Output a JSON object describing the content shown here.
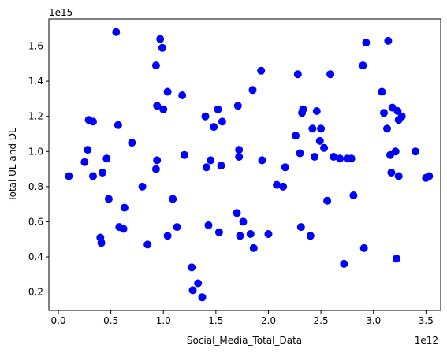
{
  "chart_data": {
    "type": "scatter",
    "title": "",
    "xlabel": "Social_Media_Total_Data",
    "ylabel": "Total UL and DL",
    "x_offset_text": "1e12",
    "y_offset_text": "1e15",
    "x_scale": 1000000000000,
    "y_scale": 1000000000000000,
    "xlim": [
      -0.09,
      3.64
    ],
    "ylim": [
      0.095,
      1.755
    ],
    "x_ticks": [
      0.0,
      0.5,
      1.0,
      1.5,
      2.0,
      2.5,
      3.0,
      3.5
    ],
    "x_tick_labels": [
      "0.0",
      "0.5",
      "1.0",
      "1.5",
      "2.0",
      "2.5",
      "3.0",
      "3.5"
    ],
    "y_ticks": [
      0.2,
      0.4,
      0.6,
      0.8,
      1.0,
      1.2,
      1.4,
      1.6
    ],
    "y_tick_labels": [
      "0.2",
      "0.4",
      "0.6",
      "0.8",
      "1.0",
      "1.2",
      "1.4",
      "1.6"
    ],
    "grid": false,
    "marker_color": "#0000ff",
    "points": [
      {
        "x": 0.1,
        "y": 0.86
      },
      {
        "x": 0.25,
        "y": 0.94
      },
      {
        "x": 0.28,
        "y": 1.01
      },
      {
        "x": 0.29,
        "y": 1.18
      },
      {
        "x": 0.33,
        "y": 1.17
      },
      {
        "x": 0.33,
        "y": 0.86
      },
      {
        "x": 0.4,
        "y": 0.51
      },
      {
        "x": 0.41,
        "y": 0.48
      },
      {
        "x": 0.42,
        "y": 0.88
      },
      {
        "x": 0.46,
        "y": 0.96
      },
      {
        "x": 0.48,
        "y": 0.73
      },
      {
        "x": 0.55,
        "y": 1.68
      },
      {
        "x": 0.57,
        "y": 1.15
      },
      {
        "x": 0.58,
        "y": 0.57
      },
      {
        "x": 0.62,
        "y": 0.56
      },
      {
        "x": 0.63,
        "y": 0.68
      },
      {
        "x": 0.7,
        "y": 1.05
      },
      {
        "x": 0.8,
        "y": 0.8
      },
      {
        "x": 0.85,
        "y": 0.47
      },
      {
        "x": 0.93,
        "y": 1.49
      },
      {
        "x": 0.94,
        "y": 1.26
      },
      {
        "x": 0.94,
        "y": 0.95
      },
      {
        "x": 0.93,
        "y": 0.9
      },
      {
        "x": 0.97,
        "y": 1.64
      },
      {
        "x": 0.99,
        "y": 1.59
      },
      {
        "x": 1.0,
        "y": 1.24
      },
      {
        "x": 1.04,
        "y": 1.34
      },
      {
        "x": 1.04,
        "y": 0.52
      },
      {
        "x": 1.09,
        "y": 0.73
      },
      {
        "x": 1.13,
        "y": 0.57
      },
      {
        "x": 1.18,
        "y": 1.32
      },
      {
        "x": 1.2,
        "y": 0.98
      },
      {
        "x": 1.27,
        "y": 0.34
      },
      {
        "x": 1.28,
        "y": 0.21
      },
      {
        "x": 1.33,
        "y": 0.25
      },
      {
        "x": 1.37,
        "y": 0.17
      },
      {
        "x": 1.4,
        "y": 1.2
      },
      {
        "x": 1.41,
        "y": 0.91
      },
      {
        "x": 1.43,
        "y": 0.58
      },
      {
        "x": 1.45,
        "y": 0.95
      },
      {
        "x": 1.48,
        "y": 1.14
      },
      {
        "x": 1.52,
        "y": 1.24
      },
      {
        "x": 1.53,
        "y": 0.54
      },
      {
        "x": 1.55,
        "y": 0.92
      },
      {
        "x": 1.56,
        "y": 1.17
      },
      {
        "x": 1.7,
        "y": 0.65
      },
      {
        "x": 1.71,
        "y": 1.26
      },
      {
        "x": 1.72,
        "y": 1.01
      },
      {
        "x": 1.72,
        "y": 0.97
      },
      {
        "x": 1.73,
        "y": 0.52
      },
      {
        "x": 1.76,
        "y": 0.6
      },
      {
        "x": 1.83,
        "y": 0.53
      },
      {
        "x": 1.85,
        "y": 1.35
      },
      {
        "x": 1.86,
        "y": 0.45
      },
      {
        "x": 1.93,
        "y": 1.46
      },
      {
        "x": 1.94,
        "y": 0.95
      },
      {
        "x": 2.0,
        "y": 0.53
      },
      {
        "x": 2.08,
        "y": 0.81
      },
      {
        "x": 2.14,
        "y": 0.8
      },
      {
        "x": 2.16,
        "y": 0.91
      },
      {
        "x": 2.26,
        "y": 1.09
      },
      {
        "x": 2.28,
        "y": 1.44
      },
      {
        "x": 2.3,
        "y": 0.99
      },
      {
        "x": 2.31,
        "y": 0.57
      },
      {
        "x": 2.32,
        "y": 1.22
      },
      {
        "x": 2.33,
        "y": 1.24
      },
      {
        "x": 2.4,
        "y": 0.52
      },
      {
        "x": 2.42,
        "y": 1.13
      },
      {
        "x": 2.44,
        "y": 0.97
      },
      {
        "x": 2.46,
        "y": 1.23
      },
      {
        "x": 2.49,
        "y": 1.06
      },
      {
        "x": 2.5,
        "y": 1.13
      },
      {
        "x": 2.53,
        "y": 1.02
      },
      {
        "x": 2.56,
        "y": 0.72
      },
      {
        "x": 2.59,
        "y": 1.44
      },
      {
        "x": 2.62,
        "y": 0.97
      },
      {
        "x": 2.68,
        "y": 0.96
      },
      {
        "x": 2.72,
        "y": 0.36
      },
      {
        "x": 2.75,
        "y": 0.96
      },
      {
        "x": 2.79,
        "y": 0.96
      },
      {
        "x": 2.81,
        "y": 0.75
      },
      {
        "x": 2.9,
        "y": 1.49
      },
      {
        "x": 2.91,
        "y": 0.45
      },
      {
        "x": 2.93,
        "y": 1.62
      },
      {
        "x": 3.08,
        "y": 1.34
      },
      {
        "x": 3.1,
        "y": 1.22
      },
      {
        "x": 3.13,
        "y": 1.13
      },
      {
        "x": 3.14,
        "y": 1.63
      },
      {
        "x": 3.16,
        "y": 0.98
      },
      {
        "x": 3.17,
        "y": 0.88
      },
      {
        "x": 3.18,
        "y": 1.25
      },
      {
        "x": 3.21,
        "y": 1.0
      },
      {
        "x": 3.22,
        "y": 0.39
      },
      {
        "x": 3.23,
        "y": 1.23
      },
      {
        "x": 3.24,
        "y": 1.18
      },
      {
        "x": 3.24,
        "y": 0.86
      },
      {
        "x": 3.27,
        "y": 1.2
      },
      {
        "x": 3.4,
        "y": 1.0
      },
      {
        "x": 3.5,
        "y": 0.85
      },
      {
        "x": 3.53,
        "y": 0.86
      }
    ]
  }
}
